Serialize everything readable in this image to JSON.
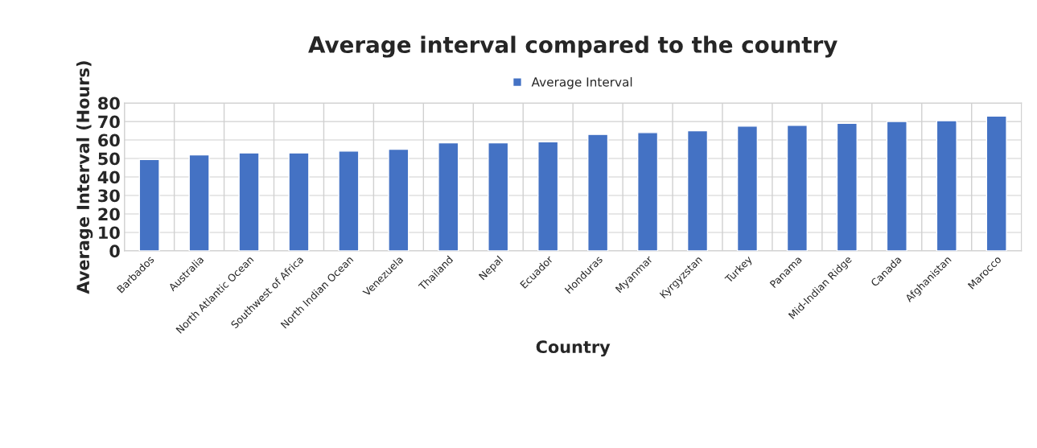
{
  "chart_data": {
    "type": "bar",
    "title": "Average interval compared to the country",
    "xlabel": "Country",
    "ylabel": "Average Interval (Hours)",
    "categories": [
      "Barbados",
      "Australia",
      "North Atlantic Ocean",
      "Southwest of Africa",
      "North Indian Ocean",
      "Venezuela",
      "Thailand",
      "Nepal",
      "Ecuador",
      "Honduras",
      "Myanmar",
      "Kyrgyzstan",
      "Turkey",
      "Panama",
      "Mid-Indian Ridge",
      "Canada",
      "Afghanistan",
      "Marocco"
    ],
    "series": [
      {
        "name": "Average Interval",
        "color": "#4472c4",
        "values": [
          49.5,
          52,
          53,
          53,
          54,
          55,
          58.5,
          58.5,
          59,
          63,
          64,
          65,
          67.5,
          68,
          69,
          70,
          70.5,
          73
        ]
      }
    ],
    "ylim": [
      0,
      80
    ],
    "yticks": [
      0,
      10,
      20,
      30,
      40,
      50,
      60,
      70,
      80
    ],
    "grid": true,
    "legend": "top"
  }
}
